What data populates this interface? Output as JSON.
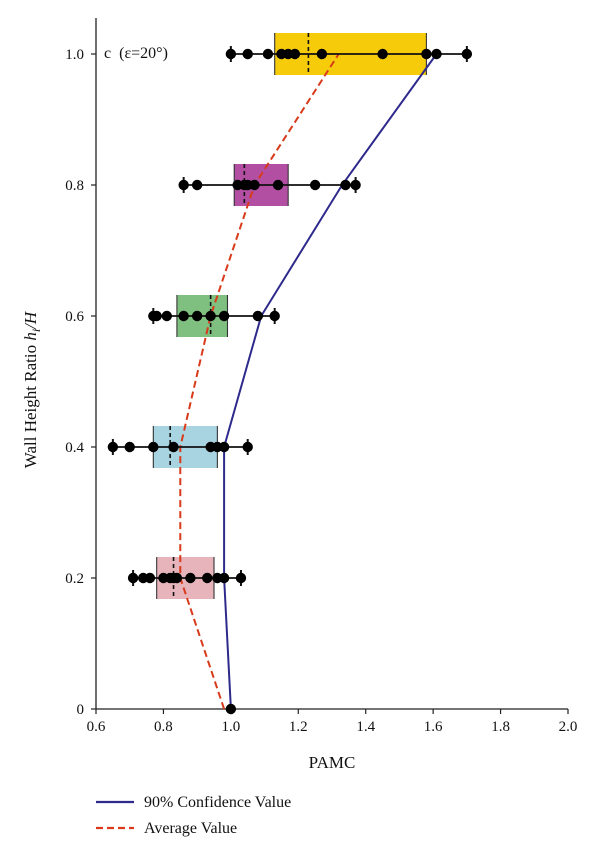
{
  "chart_data": {
    "type": "scatter",
    "panel_label": "c",
    "panel_param": "(ε=20°)",
    "xlabel": "PAMC",
    "ylabel_main": "Wall Height Ratio ",
    "ylabel_h": "h",
    "ylabel_sub": "i",
    "ylabel_tail": "/H",
    "xlim": [
      0.6,
      2.0
    ],
    "ylim": [
      0,
      1.0
    ],
    "x_ticks": [
      "0.6",
      "0.8",
      "1.0",
      "1.2",
      "1.4",
      "1.6",
      "1.8",
      "2.0"
    ],
    "y_ticks": [
      "0",
      "0.2",
      "0.4",
      "0.6",
      "0.8",
      "1.0"
    ],
    "grid": false,
    "legend_position": "bottom-left",
    "groups": [
      {
        "y": 0.2,
        "color": "#E8B4BC",
        "box": [
          0.78,
          0.95
        ],
        "mean": 0.83,
        "range": [
          0.71,
          1.03
        ],
        "points": [
          0.71,
          0.74,
          0.76,
          0.8,
          0.82,
          0.83,
          0.84,
          0.88,
          0.93,
          0.96,
          0.98,
          1.03
        ]
      },
      {
        "y": 0.4,
        "color": "#A8D4E2",
        "box": [
          0.77,
          0.96
        ],
        "mean": 0.82,
        "range": [
          0.65,
          1.05
        ],
        "points": [
          0.65,
          0.7,
          0.77,
          0.83,
          0.94,
          0.96,
          0.98,
          1.05
        ]
      },
      {
        "y": 0.6,
        "color": "#7FBF7F",
        "box": [
          0.84,
          0.99
        ],
        "mean": 0.94,
        "range": [
          0.77,
          1.13
        ],
        "points": [
          0.77,
          0.78,
          0.81,
          0.86,
          0.9,
          0.94,
          0.98,
          1.08,
          1.13
        ]
      },
      {
        "y": 0.8,
        "color": "#B24FA3",
        "box": [
          1.01,
          1.17
        ],
        "mean": 1.04,
        "range": [
          0.86,
          1.37
        ],
        "points": [
          0.86,
          0.9,
          1.02,
          1.04,
          1.05,
          1.07,
          1.14,
          1.25,
          1.34,
          1.37
        ]
      },
      {
        "y": 1.0,
        "color": "#F5CB0A",
        "box": [
          1.13,
          1.58
        ],
        "mean": 1.23,
        "range": [
          1.0,
          1.7
        ],
        "points": [
          1.0,
          1.05,
          1.11,
          1.15,
          1.17,
          1.19,
          1.27,
          1.45,
          1.58,
          1.61,
          1.7
        ]
      }
    ],
    "series": [
      {
        "name": "90% Confidence Value",
        "color": "#2E2A8C",
        "style": "solid",
        "x": [
          1.0,
          0.98,
          0.98,
          1.09,
          1.33,
          1.61
        ],
        "y": [
          0.0,
          0.2,
          0.4,
          0.6,
          0.8,
          1.0
        ]
      },
      {
        "name": "Average Value",
        "color": "#D83A1A",
        "style": "dashed",
        "x": [
          0.98,
          0.85,
          0.85,
          0.94,
          1.07,
          1.32
        ],
        "y": [
          0.0,
          0.2,
          0.4,
          0.6,
          0.8,
          1.0
        ]
      }
    ]
  }
}
